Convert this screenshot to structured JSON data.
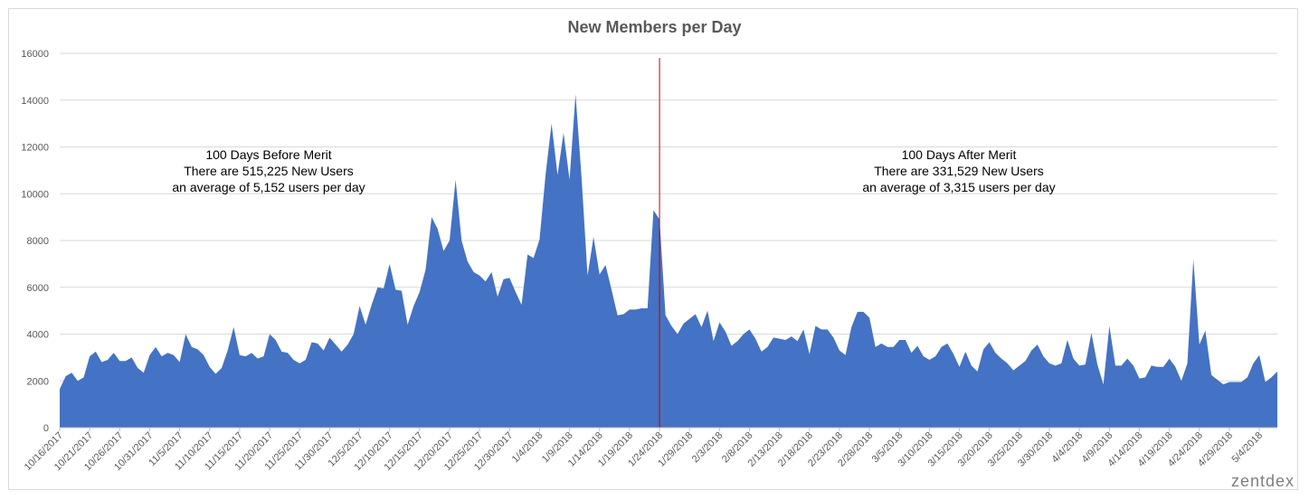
{
  "chart_data": {
    "type": "area",
    "title": "New Members per Day",
    "xlabel": "",
    "ylabel": "",
    "ylim": [
      0,
      16000
    ],
    "y_ticks": [
      0,
      2000,
      4000,
      6000,
      8000,
      10000,
      12000,
      14000,
      16000
    ],
    "grid": true,
    "x_start_date": "2017-10-16",
    "x_tick_labels": [
      "10/16/2017",
      "10/21/2017",
      "10/26/2017",
      "10/31/2017",
      "11/5/2017",
      "11/10/2017",
      "11/15/2017",
      "11/20/2017",
      "11/25/2017",
      "11/30/2017",
      "12/5/2017",
      "12/10/2017",
      "12/15/2017",
      "12/20/2017",
      "12/25/2017",
      "12/30/2017",
      "1/4/2018",
      "1/9/2018",
      "1/14/2018",
      "1/19/2018",
      "1/24/2018",
      "1/29/2018",
      "2/3/2018",
      "2/8/2018",
      "2/13/2018",
      "2/18/2018",
      "2/23/2018",
      "2/28/2018",
      "3/5/2018",
      "3/10/2018",
      "3/15/2018",
      "3/20/2018",
      "3/25/2018",
      "3/30/2018",
      "4/4/2018",
      "4/9/2018",
      "4/14/2018",
      "4/19/2018",
      "4/24/2018",
      "4/29/2018",
      "5/4/2018"
    ],
    "series": [
      {
        "color": "#4472c4",
        "values": [
          1650,
          2200,
          2350,
          2000,
          2150,
          3050,
          3250,
          2800,
          2900,
          3200,
          2850,
          2850,
          3000,
          2550,
          2350,
          3100,
          3450,
          3050,
          3200,
          3100,
          2800,
          4000,
          3450,
          3350,
          3100,
          2600,
          2300,
          2550,
          3300,
          4300,
          3100,
          3050,
          3200,
          2950,
          3050,
          4000,
          3750,
          3250,
          3200,
          2900,
          2750,
          2900,
          3650,
          3600,
          3300,
          3850,
          3550,
          3250,
          3550,
          4000,
          5200,
          4400,
          5250,
          6000,
          5950,
          7000,
          5900,
          5850,
          4400,
          5200,
          5800,
          6750,
          9000,
          8500,
          7550,
          8000,
          10600,
          8000,
          7100,
          6650,
          6500,
          6250,
          6650,
          5600,
          6350,
          6400,
          5800,
          5250,
          7400,
          7250,
          8050,
          10800,
          13000,
          10800,
          12600,
          10600,
          14250,
          10700,
          6500,
          8150,
          6550,
          6950,
          5900,
          4800,
          4850,
          5050,
          5050,
          5100,
          5100,
          9300,
          8900,
          4800,
          4350,
          4000,
          4450,
          4650,
          4850,
          4300,
          5000,
          3700,
          4500,
          4100,
          3500,
          3700,
          4000,
          4200,
          3800,
          3250,
          3450,
          3850,
          3800,
          3750,
          3900,
          3700,
          4200,
          3150,
          4350,
          4200,
          4200,
          3850,
          3300,
          3100,
          4300,
          4950,
          4950,
          4700,
          3450,
          3600,
          3450,
          3450,
          3750,
          3750,
          3200,
          3500,
          3050,
          2900,
          3050,
          3450,
          3600,
          3150,
          2600,
          3250,
          2650,
          2400,
          3350,
          3650,
          3200,
          2950,
          2750,
          2450,
          2650,
          2850,
          3300,
          3550,
          3050,
          2750,
          2650,
          2750,
          3750,
          2950,
          2650,
          2700,
          4050,
          2700,
          1850,
          4350,
          2650,
          2650,
          2950,
          2650,
          2100,
          2150,
          2650,
          2600,
          2600,
          2950,
          2600,
          2000,
          2750,
          7200,
          3550,
          4150,
          2250,
          2050,
          1850,
          1950,
          1950,
          1950,
          2150,
          2750,
          3100,
          1950,
          2150,
          2400
        ]
      }
    ],
    "marker_date": "2018-01-24",
    "marker_color": "#c00000"
  },
  "annotations": {
    "before": {
      "line1": "100 Days Before Merit",
      "line2": "There are 515,225 New Users",
      "line3": "an average of 5,152 users per day"
    },
    "after": {
      "line1": "100 Days After Merit",
      "line2": "There are 331,529 New Users",
      "line3": "an average of 3,315 users per day"
    }
  },
  "watermark": "zentdex"
}
